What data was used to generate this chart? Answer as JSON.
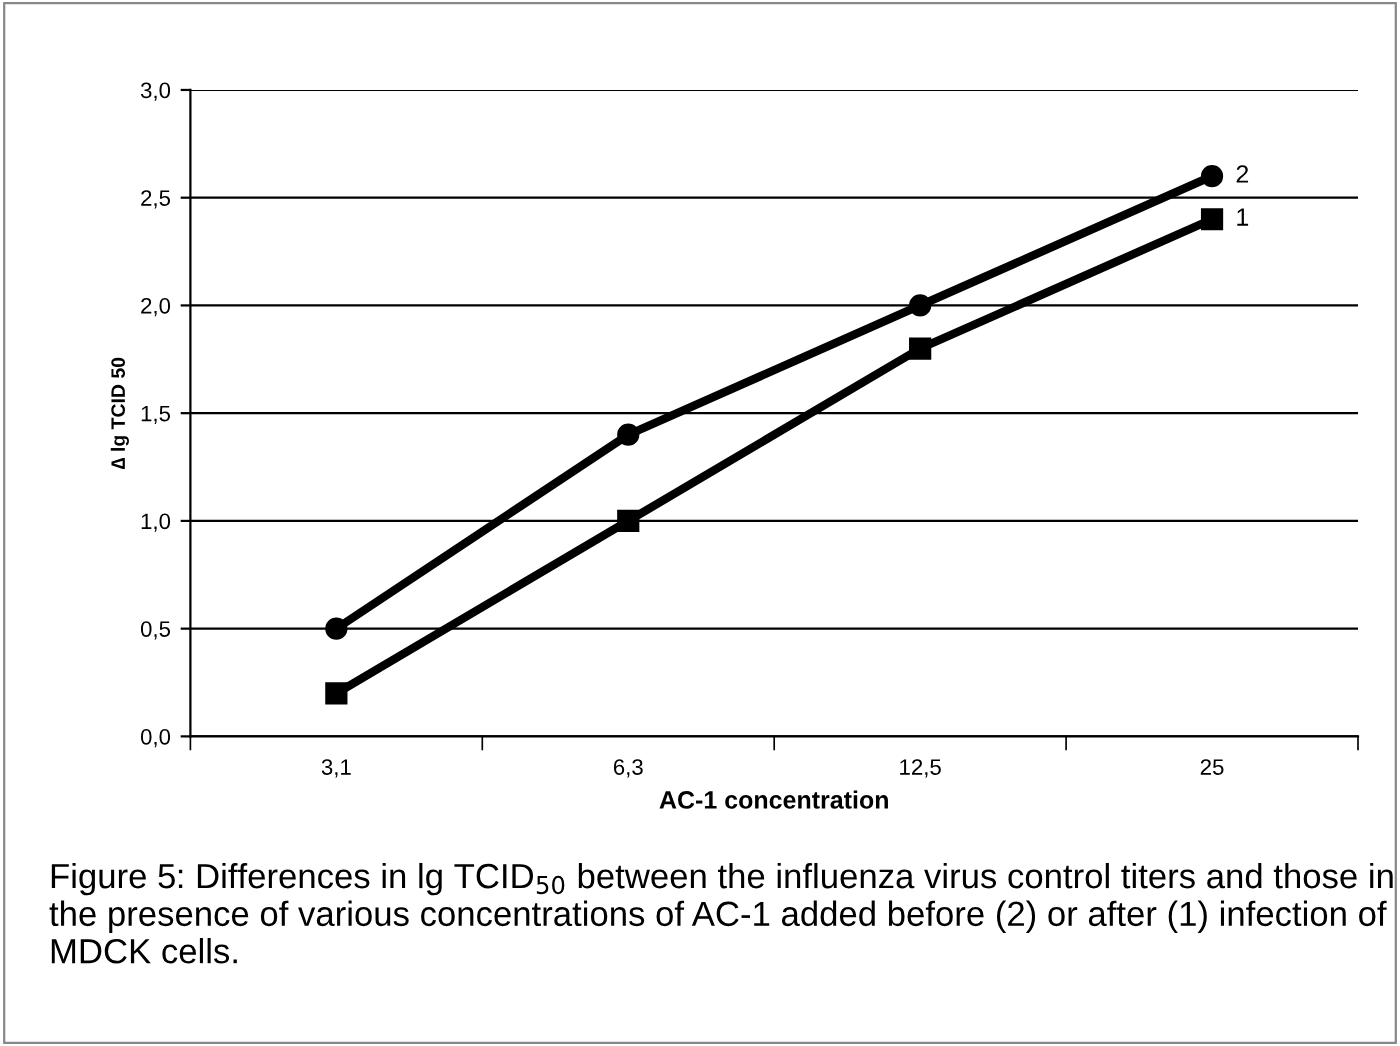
{
  "chart_data": {
    "type": "line",
    "xlabel": "AC-1 concentration",
    "ylabel": "∆ lg TCID 50",
    "categories": [
      "3,1",
      "6,3",
      "12,5",
      "25"
    ],
    "series": [
      {
        "name": "2",
        "color": "#000000",
        "marker": "circle",
        "values": [
          0.5,
          1.4,
          2.0,
          2.6
        ]
      },
      {
        "name": "1",
        "color": "#000000",
        "marker": "square",
        "values": [
          0.2,
          1.0,
          1.8,
          2.4
        ]
      }
    ],
    "ylim": [
      0,
      3
    ],
    "yticks": [
      {
        "value": 0,
        "label": "0,0"
      },
      {
        "value": 0.5,
        "label": "0,5"
      },
      {
        "value": 1,
        "label": "1,0"
      },
      {
        "value": 1.5,
        "label": "1,5"
      },
      {
        "value": 2,
        "label": "2,0"
      },
      {
        "value": 2.5,
        "label": "2,5"
      },
      {
        "value": 3,
        "label": "3,0"
      }
    ],
    "grid": "y",
    "line_style": "solid",
    "annotations": [
      "Figure 5: Differences in lg TCID$_{50}$ between the influenza virus control titers and those in the presence of various concentrations of AC-1 added before (2) or after (1) infection of MDCK cells."
    ]
  }
}
